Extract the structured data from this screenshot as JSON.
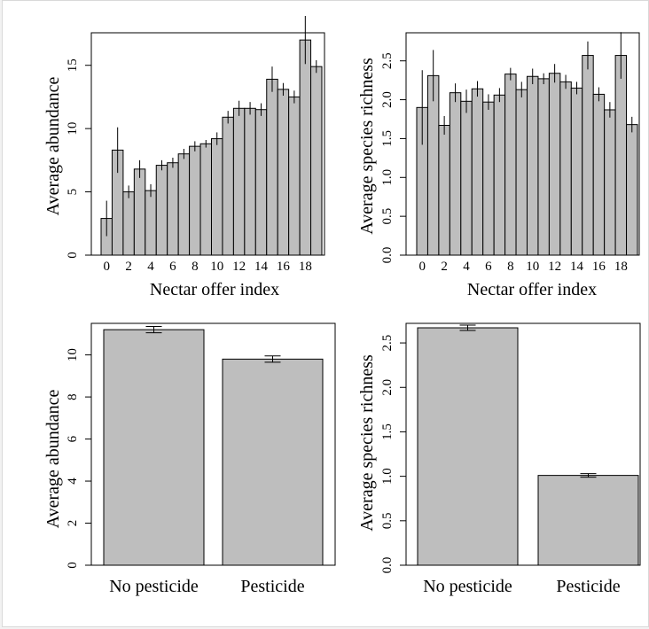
{
  "chart_data": [
    {
      "type": "bar",
      "xlabel": "Nectar offer index",
      "ylabel": "Average abundance",
      "x_tick_labels": [
        "0",
        "2",
        "4",
        "6",
        "8",
        "10",
        "12",
        "14",
        "16",
        "18"
      ],
      "y_tick_labels": [
        "0",
        "5",
        "10",
        "15"
      ],
      "categories": [
        "0",
        "1",
        "2",
        "3",
        "4",
        "5",
        "6",
        "7",
        "8",
        "9",
        "10",
        "11",
        "12",
        "13",
        "14",
        "15",
        "16",
        "17",
        "18",
        "19"
      ],
      "values": [
        2.9,
        8.3,
        5.0,
        6.8,
        5.1,
        7.1,
        7.3,
        8.0,
        8.6,
        8.8,
        9.2,
        10.9,
        11.6,
        11.6,
        11.5,
        13.9,
        13.1,
        12.5,
        17.0,
        14.9
      ],
      "error": [
        1.4,
        1.8,
        0.5,
        0.7,
        0.5,
        0.4,
        0.4,
        0.4,
        0.4,
        0.3,
        0.5,
        0.5,
        0.6,
        0.5,
        0.5,
        1.0,
        0.5,
        0.5,
        1.9,
        0.5
      ],
      "ylim": [
        0,
        17.5
      ],
      "bar_color": "#bebebe"
    },
    {
      "type": "bar",
      "xlabel": "Nectar offer index",
      "ylabel": "Average species richness",
      "x_tick_labels": [
        "0",
        "2",
        "4",
        "6",
        "8",
        "10",
        "12",
        "14",
        "16",
        "18"
      ],
      "y_tick_labels": [
        "0.0",
        "0.5",
        "1.0",
        "1.5",
        "2.0",
        "2.5"
      ],
      "categories": [
        "0",
        "1",
        "2",
        "3",
        "4",
        "5",
        "6",
        "7",
        "8",
        "9",
        "10",
        "11",
        "12",
        "13",
        "14",
        "15",
        "16",
        "17",
        "18",
        "19"
      ],
      "values": [
        1.9,
        2.31,
        1.67,
        2.09,
        1.98,
        2.14,
        1.97,
        2.06,
        2.33,
        2.13,
        2.3,
        2.27,
        2.34,
        2.23,
        2.15,
        2.57,
        2.07,
        1.87,
        2.57,
        1.68
      ],
      "error": [
        0.48,
        0.33,
        0.12,
        0.12,
        0.15,
        0.1,
        0.1,
        0.09,
        0.08,
        0.1,
        0.1,
        0.07,
        0.12,
        0.09,
        0.08,
        0.18,
        0.09,
        0.1,
        0.3,
        0.1
      ],
      "ylim": [
        0,
        2.85
      ],
      "bar_color": "#bebebe"
    },
    {
      "type": "bar",
      "xlabel": "",
      "ylabel": "Average abundance",
      "y_tick_labels": [
        "0",
        "2",
        "4",
        "6",
        "8",
        "10"
      ],
      "categories": [
        "No pesticide",
        "Pesticide"
      ],
      "values": [
        11.2,
        9.8
      ],
      "error": [
        0.15,
        0.15
      ],
      "ylim": [
        0,
        11.5
      ],
      "bar_color": "#bebebe"
    },
    {
      "type": "bar",
      "xlabel": "",
      "ylabel": "Average species richness",
      "y_tick_labels": [
        "0.0",
        "0.5",
        "1.0",
        "1.5",
        "2.0",
        "2.5"
      ],
      "categories": [
        "No pesticide",
        "Pesticide"
      ],
      "values": [
        2.67,
        1.01
      ],
      "error": [
        0.03,
        0.02
      ],
      "ylim": [
        0,
        2.72
      ],
      "bar_color": "#bebebe"
    }
  ]
}
